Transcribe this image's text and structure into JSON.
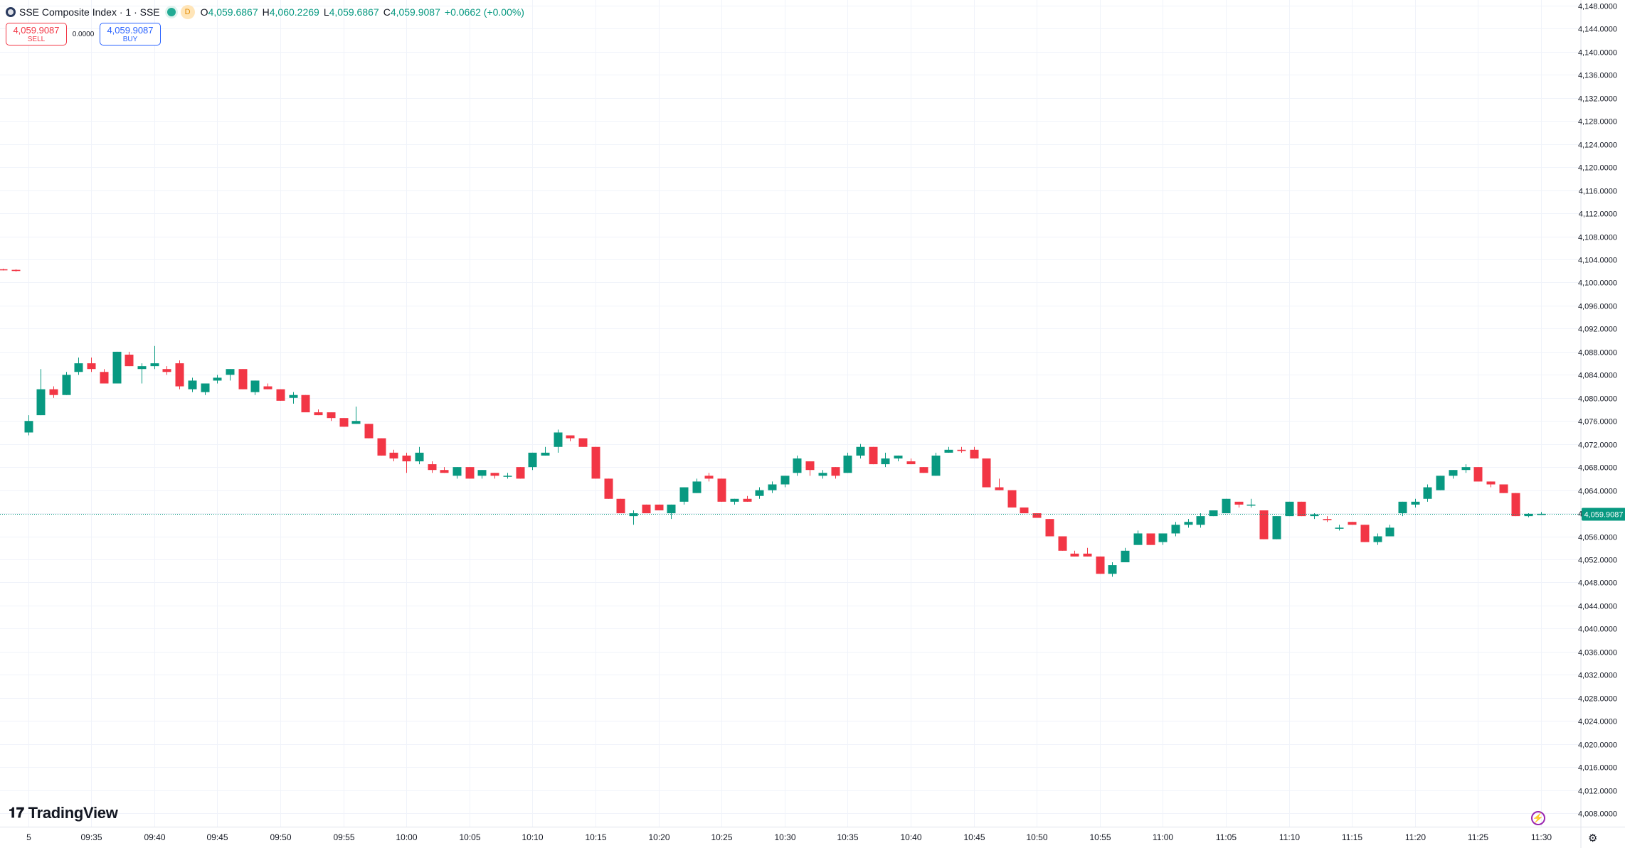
{
  "legend": {
    "symbol_icon": "sse-logo-icon",
    "title": "SSE Composite Index · 1 · SSE",
    "badge": "D",
    "open_key": "O",
    "open": "4,059.6867",
    "high_key": "H",
    "high": "4,060.2269",
    "low_key": "L",
    "low": "4,059.6867",
    "close_key": "C",
    "close": "4,059.9087",
    "change": "+0.0662 (+0.00%)"
  },
  "trade": {
    "sell_price": "4,059.9087",
    "sell_label": "SELL",
    "spread": "0.0000",
    "buy_price": "4,059.9087",
    "buy_label": "BUY"
  },
  "branding": {
    "logo_text": "TradingView",
    "logo_icon": "tradingview-logo-icon"
  },
  "icons": {
    "bolt": "lightning-icon",
    "settings": "gear-icon"
  },
  "colors": {
    "up": "#089981",
    "down": "#f23645",
    "grid": "#f0f3fa",
    "price_line": "#089981"
  },
  "chart_data": {
    "type": "candlestick",
    "y_ticks": [
      "4,148.0000",
      "4,144.0000",
      "4,140.0000",
      "4,136.0000",
      "4,132.0000",
      "4,128.0000",
      "4,124.0000",
      "4,120.0000",
      "4,116.0000",
      "4,112.0000",
      "4,108.0000",
      "4,104.0000",
      "4,100.0000",
      "4,096.0000",
      "4,092.0000",
      "4,088.0000",
      "4,084.0000",
      "4,080.0000",
      "4,076.0000",
      "4,072.0000",
      "4,068.0000",
      "4,064.0000",
      "4,060.0000",
      "4,056.0000",
      "4,052.0000",
      "4,048.0000",
      "4,044.0000",
      "4,040.0000",
      "4,036.0000",
      "4,032.0000",
      "4,028.0000",
      "4,024.0000",
      "4,020.0000",
      "4,016.0000",
      "4,012.0000",
      "4,008.0000"
    ],
    "y_range": [
      4006.0,
      4150.0
    ],
    "x_ticks": [
      {
        "label": "5",
        "minute": 0
      },
      {
        "label": "09:35",
        "minute": 5
      },
      {
        "label": "09:40",
        "minute": 10
      },
      {
        "label": "09:45",
        "minute": 15
      },
      {
        "label": "09:50",
        "minute": 20
      },
      {
        "label": "09:55",
        "minute": 25
      },
      {
        "label": "10:00",
        "minute": 30
      },
      {
        "label": "10:05",
        "minute": 35
      },
      {
        "label": "10:10",
        "minute": 40
      },
      {
        "label": "10:15",
        "minute": 45
      },
      {
        "label": "10:20",
        "minute": 50
      },
      {
        "label": "10:25",
        "minute": 55
      },
      {
        "label": "10:30",
        "minute": 60
      },
      {
        "label": "10:35",
        "minute": 65
      },
      {
        "label": "10:40",
        "minute": 70
      },
      {
        "label": "10:45",
        "minute": 75
      },
      {
        "label": "10:50",
        "minute": 80
      },
      {
        "label": "10:55",
        "minute": 85
      },
      {
        "label": "11:00",
        "minute": 90
      },
      {
        "label": "11:05",
        "minute": 95
      },
      {
        "label": "11:10",
        "minute": 100
      },
      {
        "label": "11:15",
        "minute": 105
      },
      {
        "label": "11:20",
        "minute": 110
      },
      {
        "label": "11:25",
        "minute": 115
      },
      {
        "label": "11:30",
        "minute": 120
      }
    ],
    "last_price": 4059.9087,
    "last_price_label": "4,059.9087",
    "candles": [
      [
        -2,
        4102.3,
        4102.4,
        4102.1,
        4102.2
      ],
      [
        -1,
        4102.2,
        4102.3,
        4101.9,
        4102.0
      ],
      [
        0,
        4074.0,
        4077.0,
        4073.5,
        4076.0
      ],
      [
        1,
        4077.0,
        4085.0,
        4077.0,
        4081.5
      ],
      [
        2,
        4081.5,
        4082.0,
        4080.0,
        4080.5
      ],
      [
        3,
        4080.5,
        4084.5,
        4080.5,
        4084.0
      ],
      [
        4,
        4084.5,
        4087.0,
        4084.0,
        4086.0
      ],
      [
        5,
        4086.0,
        4087.0,
        4084.5,
        4085.0
      ],
      [
        6,
        4084.5,
        4085.0,
        4082.5,
        4082.5
      ],
      [
        7,
        4082.5,
        4088.0,
        4082.5,
        4088.0
      ],
      [
        8,
        4087.5,
        4088.0,
        4085.5,
        4085.5
      ],
      [
        9,
        4085.0,
        4086.0,
        4082.5,
        4085.5
      ],
      [
        10,
        4085.5,
        4089.0,
        4085.0,
        4086.0
      ],
      [
        11,
        4085.0,
        4085.5,
        4084.0,
        4084.5
      ],
      [
        12,
        4086.0,
        4086.5,
        4081.5,
        4082.0
      ],
      [
        13,
        4081.5,
        4083.5,
        4081.0,
        4083.0
      ],
      [
        14,
        4081.0,
        4082.0,
        4080.5,
        4082.5
      ],
      [
        15,
        4083.0,
        4084.0,
        4082.5,
        4083.5
      ],
      [
        16,
        4084.0,
        4085.0,
        4083.0,
        4085.0
      ],
      [
        17,
        4085.0,
        4085.0,
        4081.5,
        4081.5
      ],
      [
        18,
        4081.0,
        4083.0,
        4080.5,
        4083.0
      ],
      [
        19,
        4082.0,
        4082.5,
        4081.5,
        4081.5
      ],
      [
        20,
        4081.5,
        4081.5,
        4079.5,
        4079.5
      ],
      [
        21,
        4080.0,
        4081.0,
        4079.0,
        4080.5
      ],
      [
        22,
        4080.5,
        4080.5,
        4077.5,
        4077.5
      ],
      [
        23,
        4077.5,
        4078.0,
        4077.0,
        4077.0
      ],
      [
        24,
        4077.5,
        4077.5,
        4076.0,
        4076.5
      ],
      [
        25,
        4076.5,
        4076.5,
        4075.0,
        4075.0
      ],
      [
        26,
        4075.5,
        4078.5,
        4075.5,
        4076.0
      ],
      [
        27,
        4075.5,
        4075.5,
        4073.0,
        4073.0
      ],
      [
        28,
        4073.0,
        4073.0,
        4070.0,
        4070.0
      ],
      [
        29,
        4070.5,
        4071.0,
        4069.0,
        4069.5
      ],
      [
        30,
        4070.0,
        4070.5,
        4067.0,
        4069.0
      ],
      [
        31,
        4069.0,
        4071.5,
        4068.5,
        4070.5
      ],
      [
        32,
        4068.5,
        4069.0,
        4067.0,
        4067.5
      ],
      [
        33,
        4067.5,
        4068.0,
        4067.0,
        4067.0
      ],
      [
        34,
        4066.5,
        4068.0,
        4066.0,
        4068.0
      ],
      [
        35,
        4068.0,
        4068.0,
        4066.0,
        4066.0
      ],
      [
        36,
        4066.5,
        4067.5,
        4066.0,
        4067.5
      ],
      [
        37,
        4067.0,
        4067.0,
        4066.0,
        4066.5
      ],
      [
        38,
        4066.5,
        4067.0,
        4066.0,
        4066.5
      ],
      [
        39,
        4068.0,
        4068.0,
        4066.0,
        4066.0
      ],
      [
        40,
        4068.0,
        4070.5,
        4067.5,
        4070.5
      ],
      [
        41,
        4070.0,
        4071.5,
        4070.0,
        4070.5
      ],
      [
        42,
        4071.5,
        4074.5,
        4070.5,
        4074.0
      ],
      [
        43,
        4073.5,
        4073.5,
        4072.5,
        4073.0
      ],
      [
        44,
        4073.0,
        4073.0,
        4071.5,
        4071.5
      ],
      [
        45,
        4071.5,
        4071.5,
        4066.0,
        4066.0
      ],
      [
        46,
        4066.0,
        4066.0,
        4062.5,
        4062.5
      ],
      [
        47,
        4062.5,
        4062.5,
        4060.0,
        4060.0
      ],
      [
        48,
        4059.5,
        4060.5,
        4058.0,
        4060.0
      ],
      [
        49,
        4061.5,
        4061.5,
        4060.5,
        4060.0
      ],
      [
        50,
        4061.5,
        4061.5,
        4060.5,
        4060.5
      ],
      [
        51,
        4060.0,
        4061.5,
        4059.0,
        4061.5
      ],
      [
        52,
        4062.0,
        4064.5,
        4061.5,
        4064.5
      ],
      [
        53,
        4063.5,
        4066.0,
        4063.5,
        4065.5
      ],
      [
        54,
        4066.5,
        4067.0,
        4065.5,
        4066.0
      ],
      [
        55,
        4066.0,
        4066.0,
        4062.0,
        4062.0
      ],
      [
        56,
        4062.0,
        4062.5,
        4061.5,
        4062.5
      ],
      [
        57,
        4062.5,
        4063.0,
        4062.0,
        4062.0
      ],
      [
        58,
        4063.0,
        4064.5,
        4062.5,
        4064.0
      ],
      [
        59,
        4064.0,
        4065.5,
        4063.5,
        4065.0
      ],
      [
        60,
        4065.0,
        4066.5,
        4064.5,
        4066.5
      ],
      [
        61,
        4067.0,
        4070.0,
        4066.5,
        4069.5
      ],
      [
        62,
        4069.0,
        4069.0,
        4066.5,
        4067.5
      ],
      [
        63,
        4066.5,
        4067.5,
        4066.0,
        4067.0
      ],
      [
        64,
        4068.0,
        4068.0,
        4066.0,
        4066.5
      ],
      [
        65,
        4067.0,
        4070.5,
        4067.0,
        4070.0
      ],
      [
        66,
        4070.0,
        4072.0,
        4069.5,
        4071.5
      ],
      [
        67,
        4071.5,
        4071.5,
        4068.5,
        4068.5
      ],
      [
        68,
        4068.5,
        4070.5,
        4068.0,
        4069.5
      ],
      [
        69,
        4069.5,
        4070.0,
        4069.0,
        4070.0
      ],
      [
        70,
        4069.0,
        4069.5,
        4068.5,
        4068.5
      ],
      [
        71,
        4068.0,
        4068.0,
        4067.0,
        4067.0
      ],
      [
        72,
        4066.5,
        4070.5,
        4066.5,
        4070.0
      ],
      [
        73,
        4070.5,
        4071.5,
        4070.5,
        4071.0
      ],
      [
        74,
        4071.0,
        4071.5,
        4070.5,
        4070.8
      ],
      [
        75,
        4071.0,
        4071.5,
        4069.5,
        4069.5
      ],
      [
        76,
        4069.5,
        4069.5,
        4064.5,
        4064.5
      ],
      [
        77,
        4064.5,
        4066.0,
        4064.0,
        4064.0
      ],
      [
        78,
        4064.0,
        4064.0,
        4061.0,
        4061.0
      ],
      [
        79,
        4061.0,
        4061.0,
        4060.0,
        4060.0
      ],
      [
        80,
        4060.0,
        4060.0,
        4059.5,
        4059.2
      ],
      [
        81,
        4059.0,
        4059.0,
        4056.0,
        4056.0
      ],
      [
        82,
        4056.0,
        4056.0,
        4053.5,
        4053.5
      ],
      [
        83,
        4053.0,
        4053.5,
        4052.5,
        4052.5
      ],
      [
        84,
        4053.0,
        4054.0,
        4052.5,
        4052.5
      ],
      [
        85,
        4052.5,
        4052.5,
        4049.5,
        4049.5
      ],
      [
        86,
        4049.5,
        4051.5,
        4049.0,
        4051.0
      ],
      [
        87,
        4051.5,
        4054.0,
        4051.5,
        4053.5
      ],
      [
        88,
        4054.5,
        4057.0,
        4054.5,
        4056.5
      ],
      [
        89,
        4056.5,
        4056.5,
        4054.5,
        4054.5
      ],
      [
        90,
        4055.0,
        4056.5,
        4054.5,
        4056.5
      ],
      [
        91,
        4056.5,
        4058.5,
        4056.0,
        4058.0
      ],
      [
        92,
        4058.0,
        4059.0,
        4057.5,
        4058.5
      ],
      [
        93,
        4058.0,
        4060.0,
        4057.5,
        4059.5
      ],
      [
        94,
        4059.5,
        4060.5,
        4059.5,
        4060.5
      ],
      [
        95,
        4060.0,
        4062.5,
        4060.0,
        4062.5
      ],
      [
        96,
        4062.0,
        4062.0,
        4061.0,
        4061.5
      ],
      [
        97,
        4061.5,
        4062.5,
        4061.0,
        4061.5
      ],
      [
        98,
        4060.5,
        4060.5,
        4055.5,
        4055.5
      ],
      [
        99,
        4055.5,
        4059.5,
        4055.5,
        4059.5
      ],
      [
        100,
        4059.5,
        4062.0,
        4059.5,
        4062.0
      ],
      [
        101,
        4062.0,
        4062.0,
        4059.5,
        4059.5
      ],
      [
        102,
        4059.5,
        4060.0,
        4059.0,
        4059.8
      ],
      [
        103,
        4059.0,
        4059.5,
        4058.5,
        4058.8
      ],
      [
        104,
        4057.5,
        4058.0,
        4057.0,
        4057.5
      ],
      [
        105,
        4058.5,
        4058.5,
        4058.0,
        4058.0
      ],
      [
        106,
        4058.0,
        4058.0,
        4055.0,
        4055.0
      ],
      [
        107,
        4055.0,
        4056.5,
        4054.5,
        4056.0
      ],
      [
        108,
        4056.0,
        4058.0,
        4056.0,
        4057.5
      ],
      [
        109,
        4060.0,
        4062.0,
        4059.5,
        4062.0
      ],
      [
        110,
        4061.5,
        4062.5,
        4061.0,
        4062.0
      ],
      [
        111,
        4062.5,
        4065.0,
        4062.0,
        4064.5
      ],
      [
        112,
        4064.0,
        4066.5,
        4064.0,
        4066.5
      ],
      [
        113,
        4066.5,
        4067.5,
        4066.0,
        4067.5
      ],
      [
        114,
        4067.5,
        4068.5,
        4067.0,
        4068.0
      ],
      [
        115,
        4068.0,
        4068.0,
        4065.5,
        4065.5
      ],
      [
        116,
        4065.5,
        4065.5,
        4064.5,
        4065.0
      ],
      [
        117,
        4065.0,
        4065.0,
        4063.5,
        4063.5
      ],
      [
        118,
        4063.5,
        4063.5,
        4059.5,
        4059.5
      ],
      [
        119,
        4059.5,
        4060.0,
        4059.3,
        4059.9
      ],
      [
        120,
        4059.7,
        4060.2,
        4059.7,
        4059.9
      ]
    ]
  }
}
